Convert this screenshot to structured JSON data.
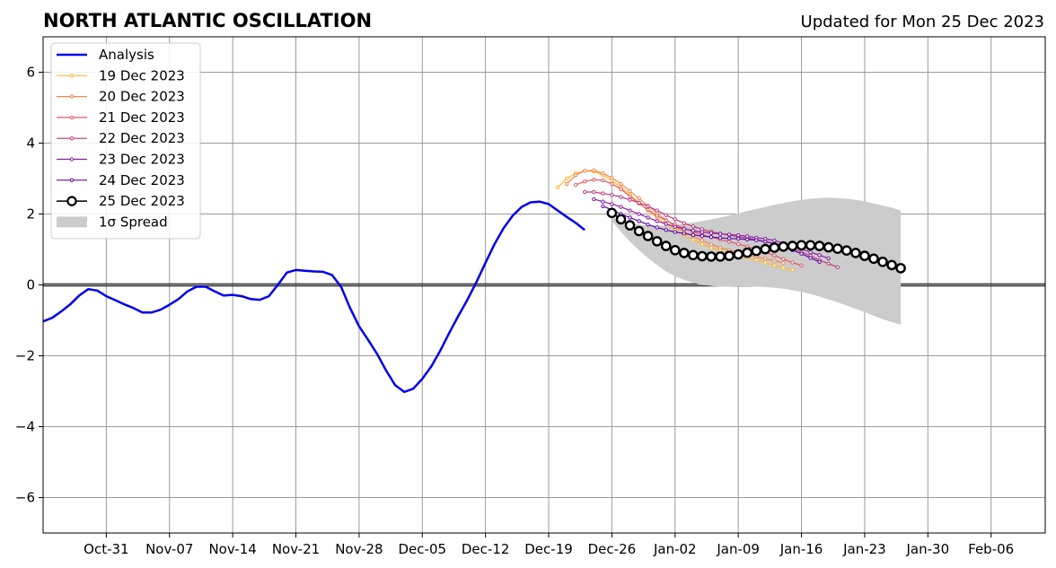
{
  "chart_data": {
    "type": "line",
    "title": "NORTH ATLANTIC OSCILLATION",
    "subtitle": "Updated for Mon 25 Dec 2023",
    "xlabel": "",
    "ylabel": "",
    "x_axis": {
      "type": "date",
      "min": "2023-10-24",
      "max": "2024-02-12",
      "ticks": [
        "2023-10-31",
        "2023-11-07",
        "2023-11-14",
        "2023-11-21",
        "2023-11-28",
        "2023-12-05",
        "2023-12-12",
        "2023-12-19",
        "2023-12-26",
        "2024-01-02",
        "2024-01-09",
        "2024-01-16",
        "2024-01-23",
        "2024-01-30",
        "2024-02-06"
      ],
      "tick_labels": [
        "Oct-31",
        "Nov-07",
        "Nov-14",
        "Nov-21",
        "Nov-28",
        "Dec-05",
        "Dec-12",
        "Dec-19",
        "Dec-26",
        "Jan-02",
        "Jan-09",
        "Jan-16",
        "Jan-23",
        "Jan-30",
        "Feb-06"
      ]
    },
    "y_axis": {
      "min": -7,
      "max": 7,
      "ticks": [
        -6,
        -4,
        -2,
        0,
        2,
        4,
        6
      ],
      "tick_labels": [
        "−6",
        "−4",
        "−2",
        "0",
        "2",
        "4",
        "6"
      ]
    },
    "grid": true,
    "legend": {
      "position": "upper-left",
      "entries": [
        "Analysis",
        "19 Dec 2023",
        "20 Dec 2023",
        "21 Dec 2023",
        "22 Dec 2023",
        "23 Dec 2023",
        "24 Dec 2023",
        "25 Dec 2023",
        "1σ Spread"
      ]
    },
    "colors": {
      "analysis": "#0000ee",
      "f19": "#fcb832",
      "f20": "#f3854c",
      "f21": "#df5968",
      "f22": "#bb3b7f",
      "f23": "#8b1ca0",
      "f24": "#5b0ba3",
      "f25": "#000000",
      "spread": "#cccccc"
    },
    "analysis": {
      "start": "2023-10-24",
      "values": [
        -1.03,
        -0.93,
        -0.75,
        -0.55,
        -0.3,
        -0.12,
        -0.16,
        -0.32,
        -0.43,
        -0.55,
        -0.65,
        -0.78,
        -0.78,
        -0.7,
        -0.56,
        -0.4,
        -0.18,
        -0.05,
        -0.05,
        -0.18,
        -0.3,
        -0.28,
        -0.32,
        -0.4,
        -0.42,
        -0.32,
        0.0,
        0.35,
        0.42,
        0.4,
        0.38,
        0.37,
        0.28,
        -0.05,
        -0.65,
        -1.17,
        -1.55,
        -1.95,
        -2.42,
        -2.83,
        -3.02,
        -2.93,
        -2.65,
        -2.3,
        -1.85,
        -1.35,
        -0.87,
        -0.42,
        0.08,
        0.62,
        1.15,
        1.6,
        1.95,
        2.2,
        2.33,
        2.35,
        2.28,
        2.1,
        1.92,
        1.75,
        1.55
      ]
    },
    "forecasts": [
      {
        "name": "19 Dec 2023",
        "start": "2023-12-20",
        "values": [
          2.75,
          3.0,
          3.15,
          3.22,
          3.2,
          3.1,
          2.95,
          2.75,
          2.55,
          2.32,
          2.1,
          1.9,
          1.72,
          1.55,
          1.4,
          1.27,
          1.15,
          1.05,
          0.97,
          0.9,
          0.83,
          0.77,
          0.7,
          0.63,
          0.55,
          0.48,
          0.42
        ]
      },
      {
        "name": "20 Dec 2023",
        "start": "2023-12-21",
        "values": [
          2.85,
          3.1,
          3.22,
          3.23,
          3.15,
          3.02,
          2.85,
          2.65,
          2.44,
          2.23,
          2.02,
          1.83,
          1.65,
          1.5,
          1.37,
          1.25,
          1.14,
          1.05,
          0.98,
          0.92,
          0.86,
          0.8,
          0.74,
          0.68,
          0.62
        ]
      },
      {
        "name": "21 Dec 2023",
        "start": "2023-12-22",
        "values": [
          2.82,
          2.92,
          2.97,
          2.95,
          2.85,
          2.7,
          2.5,
          2.3,
          2.12,
          1.95,
          1.82,
          1.7,
          1.6,
          1.5,
          1.42,
          1.35,
          1.28,
          1.22,
          1.15,
          1.08,
          1.0,
          0.92,
          0.83,
          0.73,
          0.63,
          0.55
        ]
      },
      {
        "name": "22 Dec 2023",
        "start": "2023-12-23",
        "values": [
          2.62,
          2.62,
          2.58,
          2.54,
          2.48,
          2.4,
          2.32,
          2.22,
          2.1,
          1.97,
          1.85,
          1.74,
          1.65,
          1.57,
          1.5,
          1.45,
          1.4,
          1.36,
          1.32,
          1.27,
          1.22,
          1.17,
          1.1,
          1.02,
          0.93,
          0.82,
          0.7,
          0.6,
          0.5
        ]
      },
      {
        "name": "23 Dec 2023",
        "start": "2023-12-24",
        "values": [
          2.42,
          2.35,
          2.28,
          2.2,
          2.1,
          2.0,
          1.9,
          1.8,
          1.72,
          1.64,
          1.58,
          1.53,
          1.49,
          1.46,
          1.44,
          1.42,
          1.4,
          1.37,
          1.33,
          1.3,
          1.25,
          1.18,
          1.1,
          1.02,
          0.92,
          0.84,
          0.75
        ]
      },
      {
        "name": "24 Dec 2023",
        "start": "2023-12-25",
        "values": [
          2.22,
          2.12,
          2.0,
          1.9,
          1.8,
          1.7,
          1.62,
          1.55,
          1.49,
          1.45,
          1.41,
          1.38,
          1.35,
          1.33,
          1.31,
          1.3,
          1.28,
          1.26,
          1.22,
          1.16,
          1.08,
          0.98,
          0.88,
          0.76,
          0.65
        ]
      },
      {
        "name": "25 Dec 2023",
        "start": "2023-12-26",
        "values": [
          2.03,
          1.85,
          1.68,
          1.52,
          1.38,
          1.23,
          1.1,
          0.98,
          0.9,
          0.84,
          0.81,
          0.8,
          0.8,
          0.82,
          0.86,
          0.91,
          0.96,
          1.01,
          1.05,
          1.08,
          1.1,
          1.12,
          1.12,
          1.1,
          1.06,
          1.02,
          0.97,
          0.9,
          0.82,
          0.74,
          0.65,
          0.56,
          0.47
        ]
      }
    ],
    "spread": {
      "start": "2023-12-26",
      "upper": [
        1.9,
        1.82,
        1.75,
        1.7,
        1.67,
        1.67,
        1.68,
        1.7,
        1.72,
        1.76,
        1.8,
        1.85,
        1.9,
        1.96,
        2.02,
        2.08,
        2.14,
        2.2,
        2.26,
        2.31,
        2.36,
        2.4,
        2.43,
        2.45,
        2.46,
        2.45,
        2.43,
        2.4,
        2.36,
        2.3,
        2.24,
        2.18,
        2.1
      ],
      "lower": [
        1.8,
        1.5,
        1.22,
        0.98,
        0.76,
        0.56,
        0.38,
        0.24,
        0.14,
        0.06,
        0.0,
        -0.03,
        -0.05,
        -0.05,
        -0.04,
        -0.04,
        -0.05,
        -0.06,
        -0.08,
        -0.11,
        -0.15,
        -0.2,
        -0.26,
        -0.33,
        -0.41,
        -0.49,
        -0.58,
        -0.67,
        -0.77,
        -0.87,
        -0.97,
        -1.05,
        -1.12
      ]
    }
  }
}
